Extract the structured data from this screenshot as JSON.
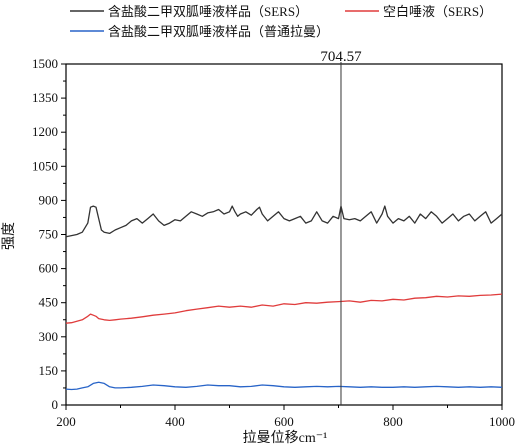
{
  "chart_data": {
    "type": "line",
    "xlabel": "拉曼位移cm⁻¹",
    "ylabel": "强度",
    "xlim": [
      200,
      1000
    ],
    "ylim": [
      0,
      1500
    ],
    "xticks": [
      200,
      400,
      600,
      800,
      1000
    ],
    "yticks": [
      0,
      150,
      300,
      450,
      600,
      750,
      900,
      1050,
      1200,
      1350,
      1500
    ],
    "grid": false,
    "legend_placement": "top",
    "annotation": {
      "label": "704.57",
      "x": 704.57
    },
    "series": [
      {
        "name": "含盐酸二甲双胍唾液样品（SERS）",
        "color": "#333333",
        "x": [
          200,
          210,
          220,
          230,
          240,
          245,
          250,
          255,
          260,
          265,
          270,
          280,
          290,
          300,
          310,
          320,
          330,
          340,
          350,
          360,
          370,
          380,
          390,
          400,
          410,
          420,
          430,
          440,
          450,
          460,
          470,
          480,
          490,
          500,
          505,
          510,
          515,
          520,
          530,
          540,
          550,
          555,
          560,
          570,
          580,
          590,
          600,
          610,
          620,
          630,
          640,
          650,
          660,
          670,
          680,
          690,
          700,
          704.57,
          710,
          720,
          730,
          740,
          750,
          760,
          770,
          780,
          785,
          790,
          800,
          810,
          820,
          830,
          840,
          850,
          860,
          870,
          880,
          890,
          900,
          910,
          920,
          930,
          940,
          950,
          960,
          970,
          980,
          990,
          1000
        ],
        "y": [
          740,
          745,
          750,
          760,
          800,
          870,
          875,
          870,
          820,
          770,
          760,
          755,
          770,
          780,
          790,
          810,
          820,
          800,
          820,
          840,
          810,
          790,
          800,
          815,
          810,
          830,
          850,
          840,
          830,
          845,
          850,
          860,
          840,
          850,
          875,
          850,
          830,
          840,
          850,
          835,
          860,
          870,
          840,
          810,
          830,
          850,
          820,
          810,
          820,
          830,
          800,
          810,
          850,
          810,
          800,
          830,
          820,
          875,
          820,
          815,
          820,
          810,
          830,
          850,
          800,
          840,
          875,
          830,
          800,
          820,
          810,
          830,
          800,
          840,
          820,
          850,
          830,
          800,
          820,
          840,
          810,
          830,
          840,
          810,
          830,
          850,
          800,
          820,
          840
        ]
      },
      {
        "name": "空白唾液（SERS）",
        "color": "#e03c3c",
        "x": [
          200,
          210,
          220,
          230,
          240,
          245,
          250,
          255,
          260,
          270,
          280,
          290,
          300,
          320,
          340,
          360,
          380,
          400,
          420,
          440,
          460,
          480,
          500,
          520,
          540,
          560,
          580,
          600,
          620,
          640,
          660,
          680,
          700,
          720,
          740,
          760,
          780,
          800,
          820,
          840,
          860,
          880,
          900,
          920,
          940,
          960,
          980,
          1000
        ],
        "y": [
          360,
          362,
          368,
          375,
          390,
          400,
          395,
          390,
          380,
          375,
          372,
          375,
          378,
          382,
          388,
          395,
          400,
          405,
          415,
          422,
          428,
          435,
          430,
          435,
          430,
          440,
          435,
          445,
          442,
          450,
          448,
          452,
          455,
          458,
          452,
          460,
          458,
          465,
          462,
          470,
          472,
          478,
          475,
          480,
          478,
          482,
          484,
          488
        ]
      },
      {
        "name": "含盐酸二甲双胍唾液样品（普通拉曼）",
        "color": "#2864c8",
        "x": [
          200,
          210,
          220,
          230,
          240,
          250,
          260,
          270,
          280,
          290,
          300,
          320,
          340,
          360,
          380,
          400,
          420,
          440,
          460,
          480,
          500,
          520,
          540,
          560,
          580,
          600,
          620,
          640,
          660,
          680,
          700,
          720,
          740,
          760,
          780,
          800,
          820,
          840,
          860,
          880,
          900,
          920,
          940,
          960,
          980,
          1000
        ],
        "y": [
          70,
          68,
          70,
          75,
          80,
          95,
          100,
          95,
          80,
          75,
          75,
          78,
          82,
          88,
          85,
          80,
          78,
          82,
          88,
          85,
          85,
          80,
          82,
          88,
          85,
          80,
          78,
          80,
          82,
          80,
          82,
          80,
          78,
          80,
          78,
          78,
          80,
          78,
          80,
          82,
          80,
          78,
          80,
          78,
          80,
          78
        ]
      }
    ]
  }
}
